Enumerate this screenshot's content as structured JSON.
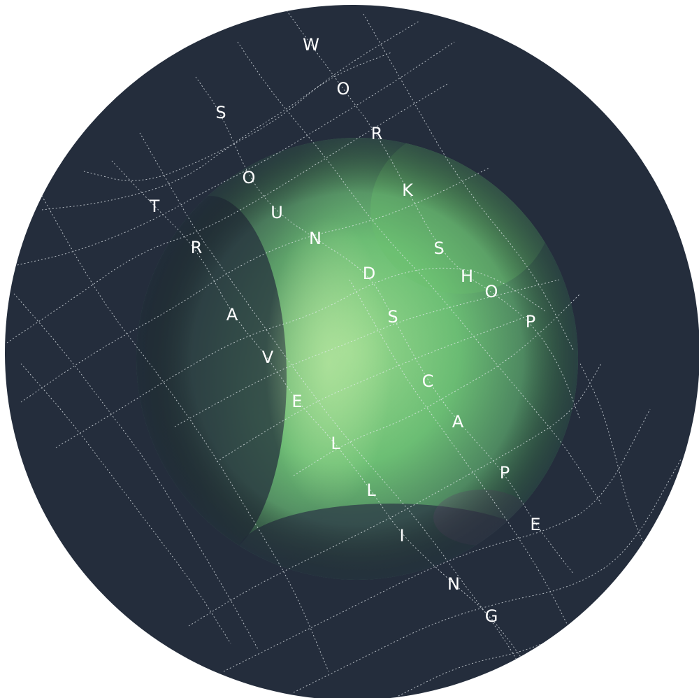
{
  "colors": {
    "outer_disc": "#242d3c",
    "sky_dark": "#2b3b45",
    "aurora_bright": "#8ed68a",
    "aurora_mid": "#5fae6a",
    "grid_line": "#e6ecf0",
    "letter": "#ffffff"
  },
  "phrases": [
    {
      "name": "workshop",
      "text": "WORKSHOP"
    },
    {
      "name": "soundscape",
      "text": "SOUNDSCAPE"
    },
    {
      "name": "travelling",
      "text": "TRAVELLING"
    }
  ]
}
